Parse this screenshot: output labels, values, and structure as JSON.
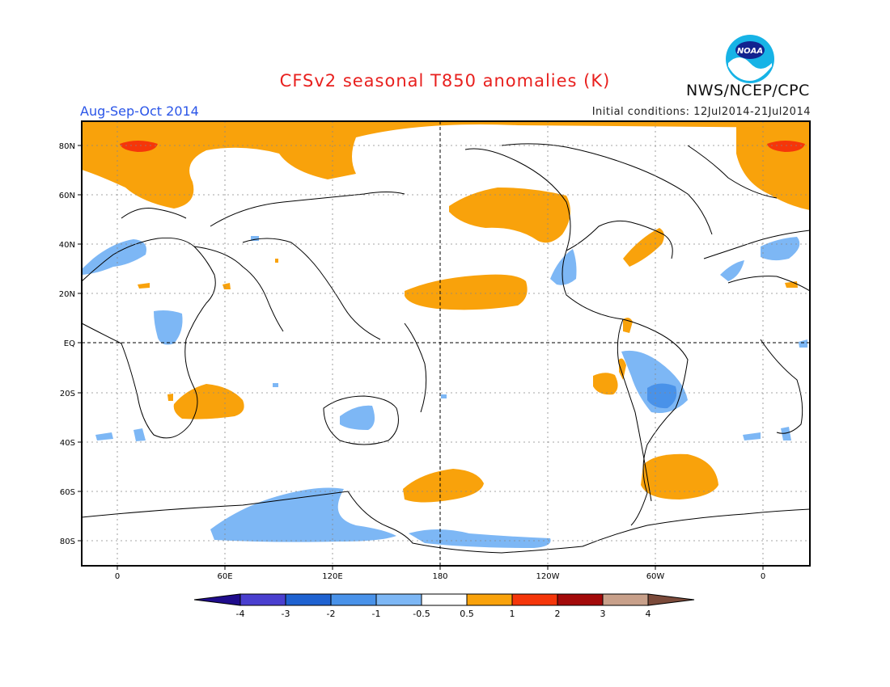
{
  "header": {
    "title": "CFSv2 seasonal T850 anomalies (K)",
    "period": "Aug-Sep-Oct 2014",
    "initial_conditions": "Initial conditions: 12Jul2014-21Jul2014",
    "agency": "NWS/NCEP/CPC",
    "logo_text": "NOAA"
  },
  "map": {
    "lat_labels": [
      "80N",
      "60N",
      "40N",
      "20N",
      "EQ",
      "20S",
      "40S",
      "60S",
      "80S"
    ],
    "lon_labels": [
      "0",
      "60E",
      "120E",
      "180",
      "120W",
      "60W",
      "0"
    ],
    "grid": "dotted"
  },
  "colorbar": {
    "labels": [
      "-4",
      "-3",
      "-2",
      "-1",
      "-0.5",
      "0.5",
      "1",
      "2",
      "3",
      "4"
    ],
    "colors": [
      "#1f0c8c",
      "#4a3fcf",
      "#1f62d1",
      "#4992e9",
      "#7db7f5",
      "#ffffff",
      "#f9a20b",
      "#f5360a",
      "#a30a0a",
      "#c8a08a",
      "#7b4a3a"
    ]
  },
  "anomaly_colors": {
    "warm": "#f9a20b",
    "strong_warm": "#f5360a",
    "cool": "#7db7f5",
    "strong_cool": "#4992e9"
  }
}
